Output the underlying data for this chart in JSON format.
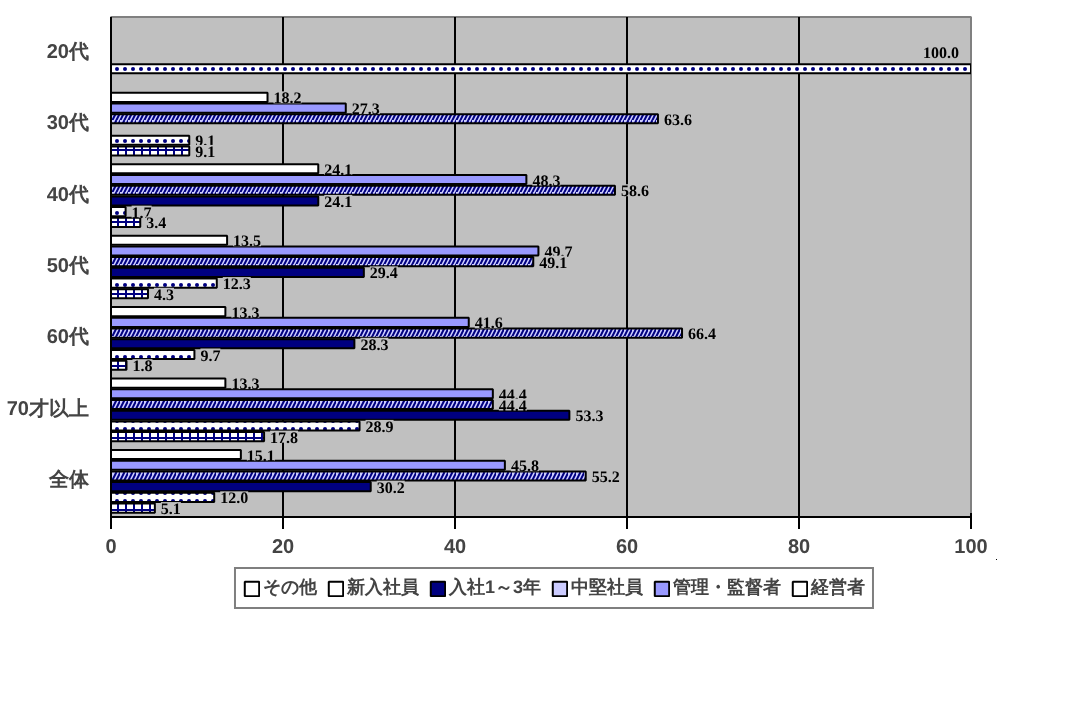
{
  "chart_data": {
    "type": "bar",
    "orientation": "horizontal",
    "categories": [
      "20代",
      "30代",
      "40代",
      "50代",
      "60代",
      "70才以上",
      "全体"
    ],
    "series": [
      {
        "name": "経営者",
        "color": "#ffffff",
        "values": [
          null,
          18.2,
          24.1,
          13.5,
          13.3,
          13.3,
          15.1
        ],
        "value_labels": [
          null,
          "18.2",
          "24.1",
          "13.5",
          "13.3",
          "13.3",
          "15.1"
        ]
      },
      {
        "name": "管理・監督者",
        "color": "#9999ff",
        "values": [
          null,
          27.3,
          48.3,
          49.7,
          41.6,
          44.4,
          45.8
        ],
        "value_labels": [
          null,
          "27.3",
          "48.3",
          "49.7",
          "41.6",
          "44.4",
          "45.8"
        ]
      },
      {
        "name": "中堅社員",
        "color": "#ccccff",
        "values": [
          null,
          63.6,
          58.6,
          49.1,
          66.4,
          44.4,
          55.2
        ],
        "value_labels": [
          null,
          "63.6",
          "58.6",
          "49.1",
          "66.4",
          "44.4",
          "55.2"
        ]
      },
      {
        "name": "入社1～3年",
        "color": "#000080",
        "values": [
          null,
          null,
          24.1,
          29.4,
          28.3,
          53.3,
          30.2
        ],
        "value_labels": [
          null,
          null,
          "24.1",
          "29.4",
          "28.3",
          "53.3",
          "30.2"
        ]
      },
      {
        "name": "新入社員",
        "color": "#ffffff",
        "values": [
          100.0,
          9.1,
          1.7,
          12.3,
          9.7,
          28.9,
          12.0
        ],
        "value_labels": [
          "100.0",
          "9.1",
          "1.7",
          "12.3",
          "9.7",
          "28.9",
          "12.0"
        ]
      },
      {
        "name": "その他",
        "color": "#ffffff",
        "values": [
          null,
          9.1,
          3.4,
          4.3,
          1.8,
          17.8,
          5.1
        ],
        "value_labels": [
          null,
          "9.1",
          "3.4",
          "4.3",
          "1.8",
          "17.8",
          "5.1"
        ]
      }
    ],
    "xlim": [
      0,
      100
    ],
    "xticks": [
      0,
      20,
      40,
      60,
      80,
      100
    ],
    "grid": "x",
    "legend": "bottom",
    "data_labels": true
  }
}
